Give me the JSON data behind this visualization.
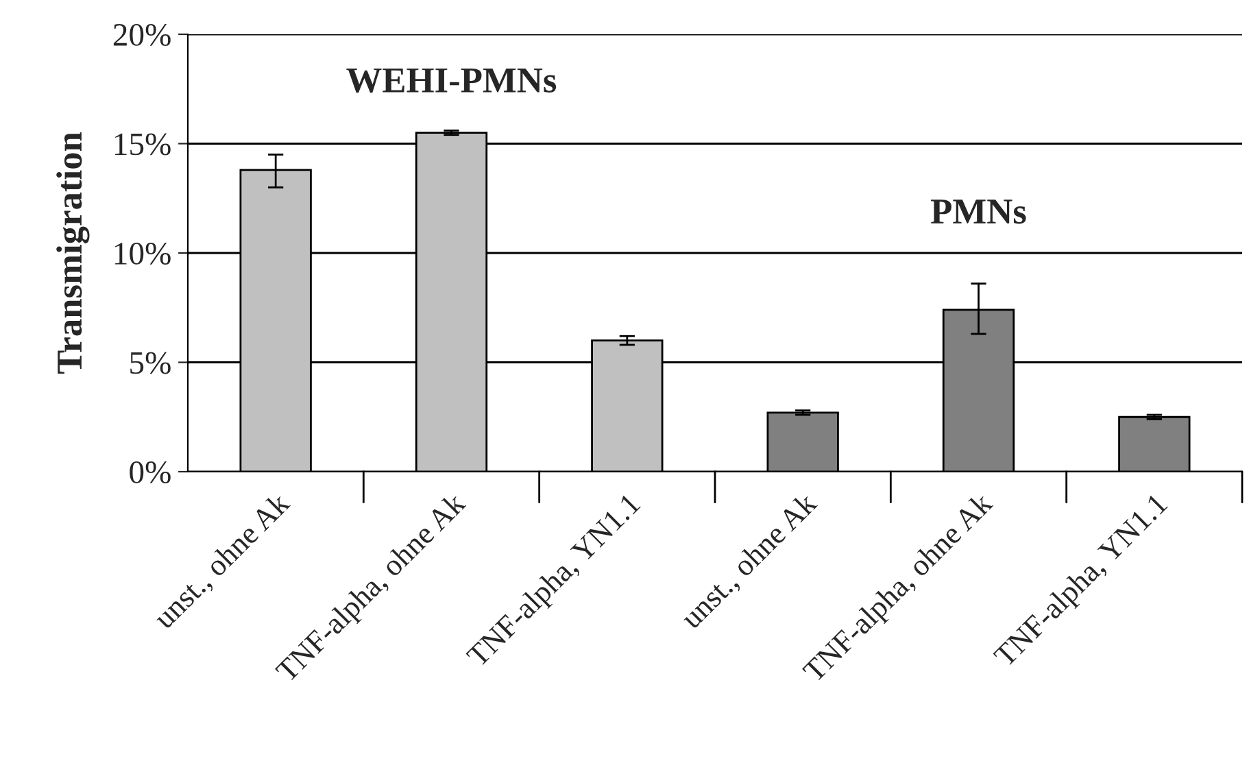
{
  "chart_data": {
    "type": "bar",
    "ylabel": "Transmigration",
    "categories": [
      "unst., ohne Ak",
      "TNF-alpha, ohne Ak",
      "TNF-alpha, YN1.1",
      "unst., ohne Ak",
      "TNF-alpha, ohne Ak",
      "TNF-alpha, YN1.1"
    ],
    "values": [
      13.8,
      15.5,
      6.0,
      2.7,
      7.4,
      2.5
    ],
    "errors": [
      [
        13.0,
        14.5
      ],
      [
        15.4,
        15.6
      ],
      [
        5.8,
        6.2
      ],
      [
        2.6,
        2.8
      ],
      [
        6.3,
        8.6
      ],
      [
        2.4,
        2.6
      ]
    ],
    "colors": [
      "#c0c0c0",
      "#c0c0c0",
      "#c0c0c0",
      "#808080",
      "#808080",
      "#808080"
    ],
    "ylim": [
      0,
      20
    ],
    "yticks": [
      {
        "value": 0,
        "label": "0%"
      },
      {
        "value": 5,
        "label": "5%"
      },
      {
        "value": 10,
        "label": "10%"
      },
      {
        "value": 15,
        "label": "15%"
      },
      {
        "value": 20,
        "label": "20%"
      }
    ],
    "grid": "y",
    "annotations": [
      "WEHI-PMNs",
      "PMNs"
    ]
  }
}
